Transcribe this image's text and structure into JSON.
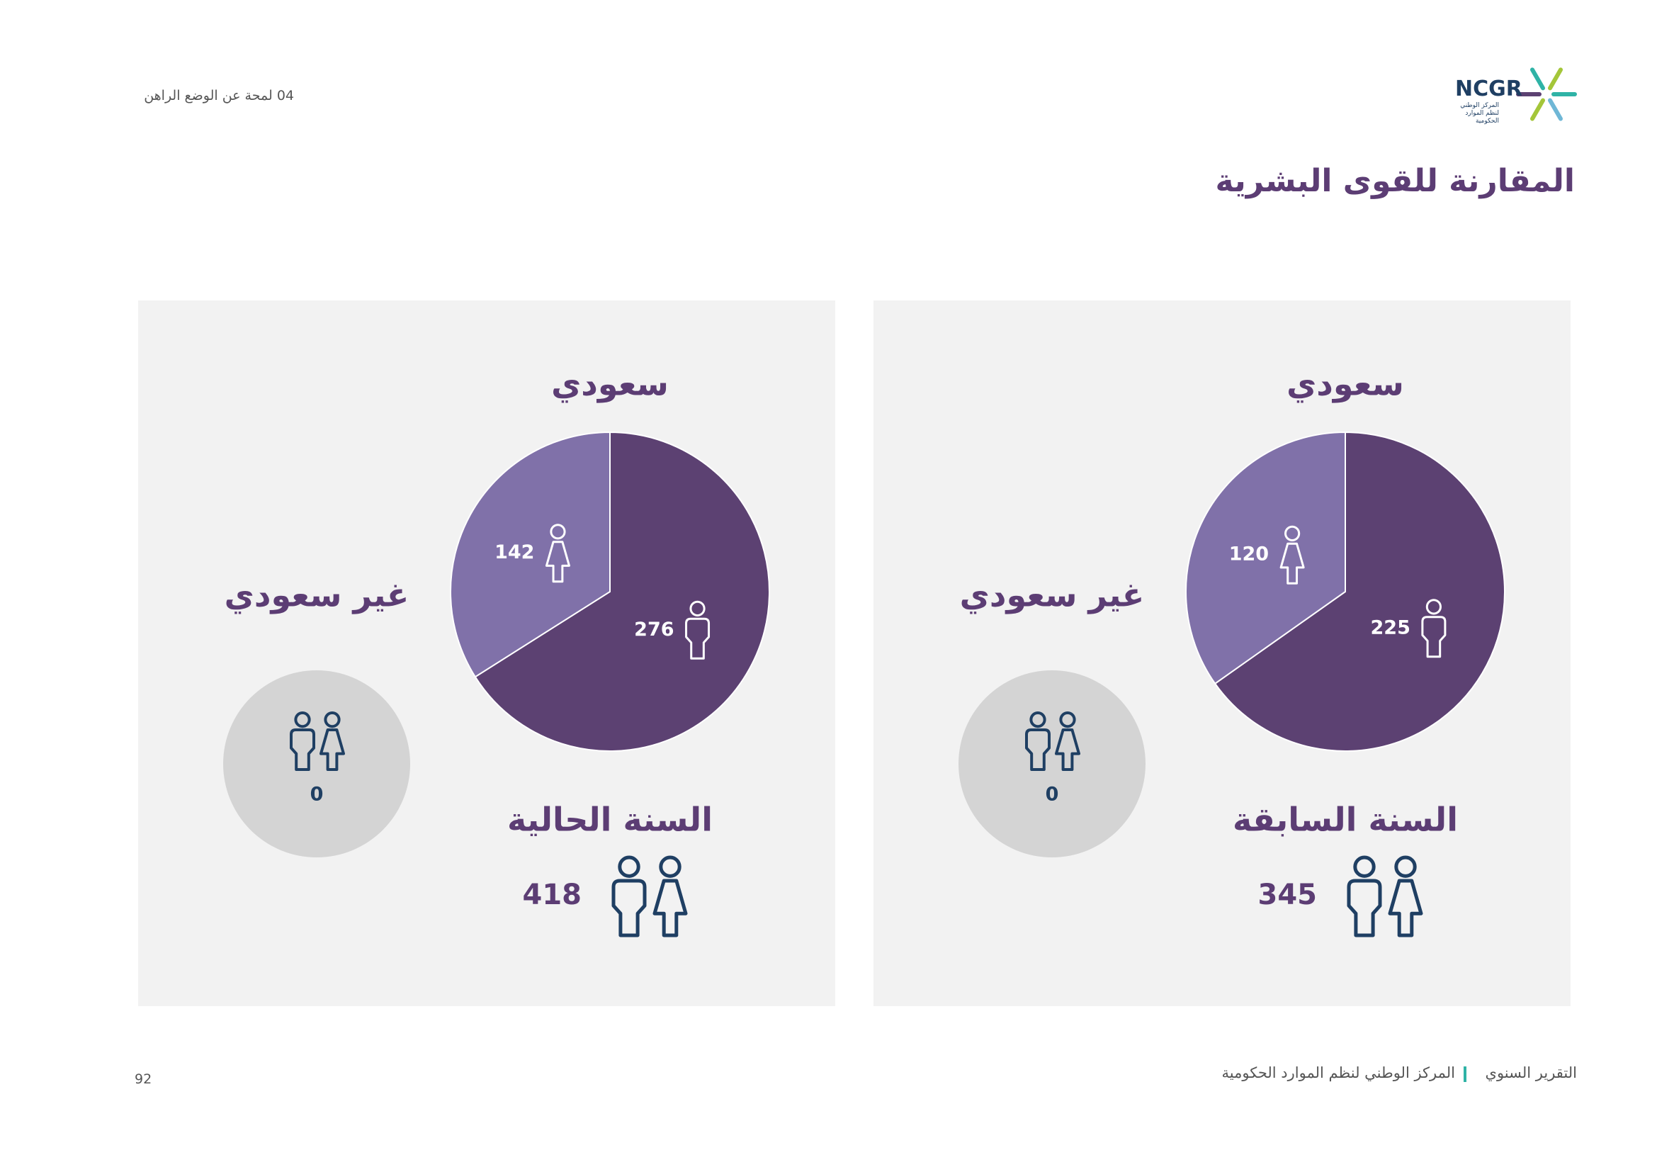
{
  "header": {
    "section": "04 لمحة عن  الوضع الراهن",
    "title": "المقارنة للقوى البشرية"
  },
  "logo": {
    "name": "NCGR",
    "subtitle": "المركز الوطني لنظم الموارد الحكومية"
  },
  "chart_data": [
    {
      "type": "pie",
      "period": "السنة الحالية",
      "title": "سعودي",
      "values": [
        276,
        142
      ],
      "colors": [
        "#5c4172",
        "#8071a9"
      ],
      "non_saudi_title": "غير سعودي",
      "non_saudi_value": 0,
      "total": 418
    },
    {
      "type": "pie",
      "period": "السنة السابقة",
      "title": "سعودي",
      "values": [
        225,
        120
      ],
      "colors": [
        "#5c4172",
        "#8071a9"
      ],
      "non_saudi_title": "غير سعودي",
      "non_saudi_value": 0,
      "total": 345
    }
  ],
  "footer": {
    "report": "التقرير السنوي",
    "org": "المركز الوطني لنظم الموارد الحكومية",
    "page": "92"
  }
}
